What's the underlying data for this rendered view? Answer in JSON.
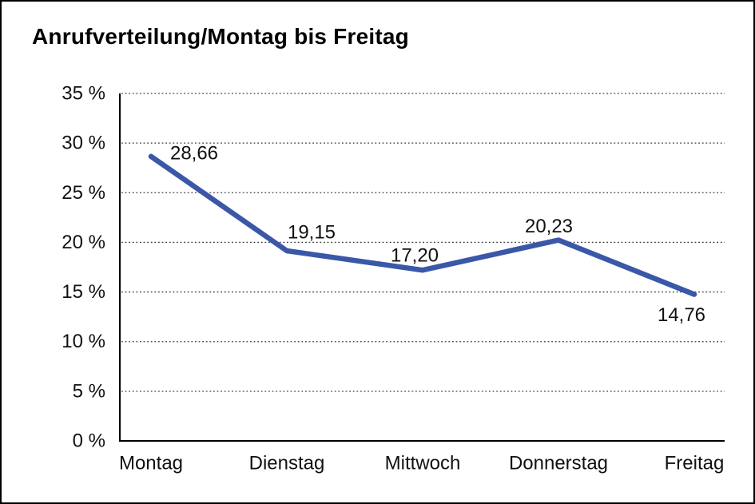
{
  "chart_data": {
    "type": "line",
    "title": "Anrufverteilung/Montag bis Freitag",
    "categories": [
      "Montag",
      "Dienstag",
      "Mittwoch",
      "Donnerstag",
      "Freitag"
    ],
    "series": [
      {
        "name": "Anrufverteilung",
        "values": [
          28.66,
          19.15,
          17.2,
          20.23,
          14.76
        ]
      }
    ],
    "value_labels": [
      "28,66",
      "19,15",
      "17,20",
      "20,23",
      "14,76"
    ],
    "y_ticks": [
      {
        "value": 35,
        "label": "35 %"
      },
      {
        "value": 30,
        "label": "30 %"
      },
      {
        "value": 25,
        "label": "25 %"
      },
      {
        "value": 20,
        "label": "20 %"
      },
      {
        "value": 15,
        "label": "15 %"
      },
      {
        "value": 10,
        "label": "10 %"
      },
      {
        "value": 5,
        "label": "5 %"
      },
      {
        "value": 0,
        "label": "0 %"
      }
    ],
    "ylim": [
      0,
      35
    ],
    "xlabel": "",
    "ylabel": "",
    "grid": "dotted-horizontal",
    "legend": "none",
    "colors": {
      "line": "#3A57A8",
      "axis": "#000000",
      "grid": "#3a3a3a",
      "text": "#111111",
      "title": "#000000",
      "background": "#ffffff"
    }
  }
}
